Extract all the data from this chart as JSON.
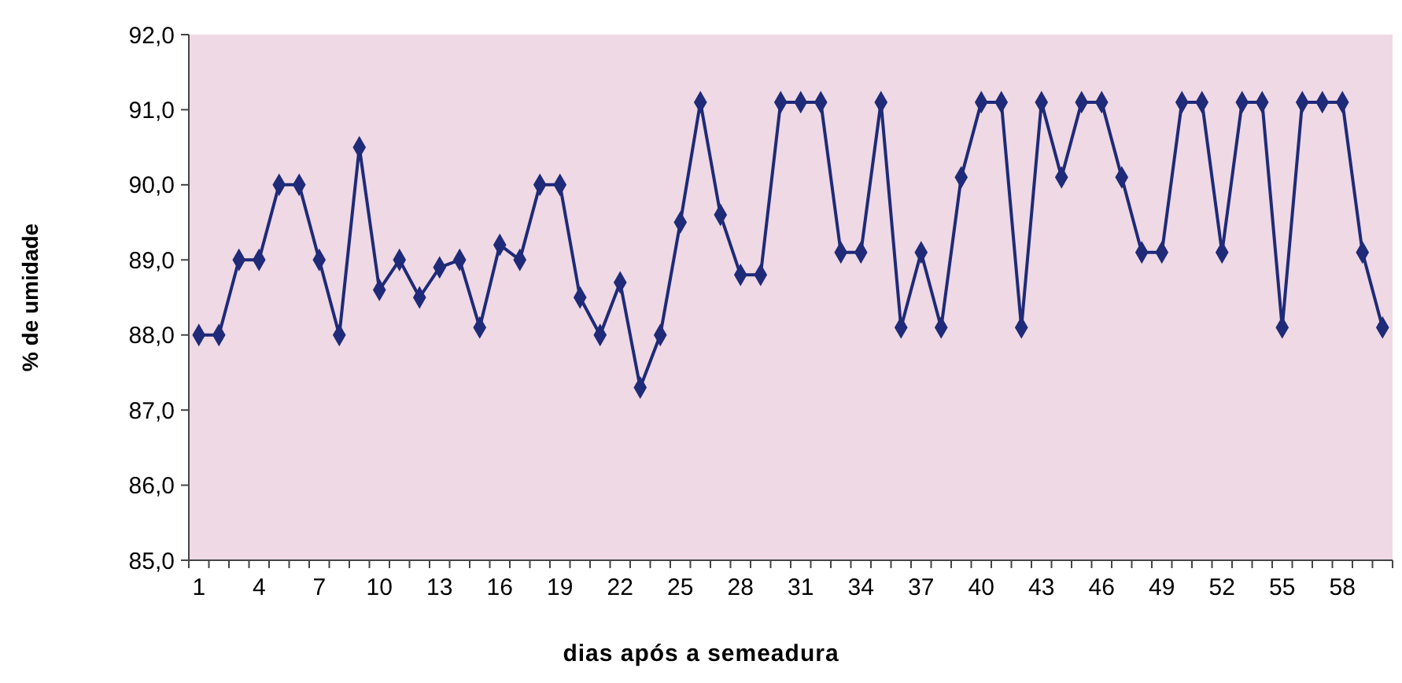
{
  "chart_data": {
    "type": "line",
    "xlabel": "dias após a semeadura",
    "ylabel": "% de umidade",
    "categories": [
      "1",
      null,
      null,
      "4",
      null,
      null,
      "7",
      null,
      null,
      "10",
      null,
      null,
      "13",
      null,
      null,
      "16",
      null,
      null,
      "19",
      null,
      null,
      "22",
      null,
      null,
      "25",
      null,
      null,
      "28",
      null,
      null,
      "31",
      null,
      null,
      "34",
      null,
      null,
      "37",
      null,
      null,
      "40",
      null,
      null,
      "43",
      null,
      null,
      "46",
      null,
      null,
      "49",
      null,
      null,
      "52",
      null,
      null,
      "55",
      null,
      null,
      "58",
      null,
      null
    ],
    "series": [
      {
        "color": "#1f2a78",
        "values": [
          88.0,
          88.0,
          89.0,
          89.0,
          90.0,
          90.0,
          89.0,
          88.0,
          90.5,
          88.6,
          89.0,
          88.5,
          88.9,
          89.0,
          88.1,
          89.2,
          89.0,
          90.0,
          90.0,
          88.5,
          88.0,
          88.7,
          87.3,
          88.0,
          89.5,
          91.1,
          89.6,
          88.8,
          88.8,
          91.1,
          91.1,
          91.1,
          89.1,
          89.1,
          91.1,
          88.1,
          89.1,
          88.1,
          90.1,
          91.1,
          91.1,
          88.1,
          91.1,
          90.1,
          91.1,
          91.1,
          90.1,
          89.1,
          89.1,
          91.1,
          91.1,
          89.1,
          91.1,
          91.1,
          88.1,
          91.1,
          91.1,
          91.1,
          89.1,
          88.1
        ]
      }
    ],
    "ylim": [
      85,
      92
    ],
    "yticks": [
      {
        "value": 85,
        "label": "85,0"
      },
      {
        "value": 86,
        "label": "86,0"
      },
      {
        "value": 87,
        "label": "87,0"
      },
      {
        "value": 88,
        "label": "88,0"
      },
      {
        "value": 89,
        "label": "89,0"
      },
      {
        "value": 90,
        "label": "90,0"
      },
      {
        "value": 91,
        "label": "91,0"
      },
      {
        "value": 92,
        "label": "92,0"
      }
    ],
    "marker": "diamond",
    "line_style": "solid",
    "grid": false
  }
}
